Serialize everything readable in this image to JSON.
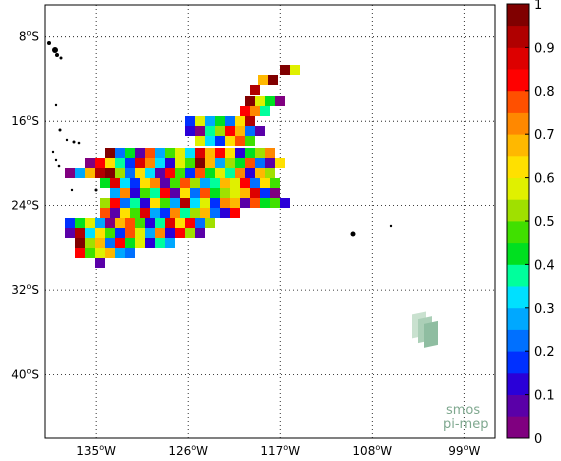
{
  "map": {
    "lat_labels": [
      {
        "deg": "8",
        "hemi": "S",
        "lat": -8
      },
      {
        "deg": "16",
        "hemi": "S",
        "lat": -16
      },
      {
        "deg": "24",
        "hemi": "S",
        "lat": -24
      },
      {
        "deg": "32",
        "hemi": "S",
        "lat": -32
      },
      {
        "deg": "40",
        "hemi": "S",
        "lat": -40
      }
    ],
    "lon_labels": [
      {
        "deg": "135",
        "hemi": "W",
        "lon": -135
      },
      {
        "deg": "126",
        "hemi": "W",
        "lon": -126
      },
      {
        "deg": "117",
        "hemi": "W",
        "lon": -117
      },
      {
        "deg": "108",
        "hemi": "W",
        "lon": -108
      },
      {
        "deg": "99",
        "hemi": "W",
        "lon": -99
      }
    ],
    "lon_range": [
      -140,
      -96
    ],
    "lat_range": [
      -46,
      -5
    ],
    "grid_style": "dotted"
  },
  "colorbar": {
    "ticks": [
      "0",
      "0.1",
      "0.2",
      "0.3",
      "0.4",
      "0.5",
      "0.6",
      "0.7",
      "0.8",
      "0.9",
      "1"
    ],
    "colors": [
      "#800080",
      "#5a00a8",
      "#2a00d8",
      "#0030ff",
      "#0070ff",
      "#00a8ff",
      "#00e0ff",
      "#00ff9c",
      "#00e020",
      "#40e000",
      "#a0e000",
      "#e0f000",
      "#ffe000",
      "#ffb800",
      "#ff8800",
      "#ff5000",
      "#ff0000",
      "#dd0000",
      "#b00000",
      "#800000"
    ]
  },
  "watermark": {
    "line1": "smos",
    "line2": "pi-mep"
  }
}
